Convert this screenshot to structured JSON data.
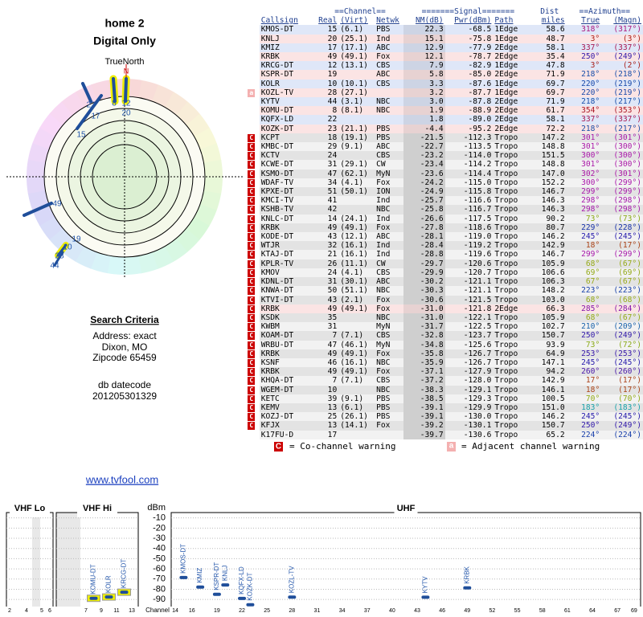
{
  "header": {
    "title": "home 2",
    "subtitle": "Digital Only"
  },
  "radar": {
    "true_north": "TrueNorth",
    "north": "N",
    "labels": [
      "8",
      "12",
      "22",
      "17",
      "20",
      "15",
      "49",
      "19",
      "10",
      "28",
      "44"
    ]
  },
  "search": {
    "title": "Search Criteria",
    "lines": [
      "Address: exact",
      "Dixon, MO",
      "Zipcode 65459"
    ],
    "datecode_label": "db datecode",
    "datecode": "201205301329"
  },
  "link": "www.tvfool.com",
  "table": {
    "group_headers": {
      "channel": "==Channel==",
      "signal": "=======Signal=======",
      "dist": "Dist",
      "azimuth": "==Azimuth=="
    },
    "columns": [
      "Callsign",
      "Real",
      "(Virt)",
      "Netwk",
      "NM(dB)",
      "Pwr(dBm)",
      "Path",
      "miles",
      "True",
      "(Magn)"
    ],
    "rows": [
      {
        "callsign": "KMOS-DT",
        "real": "15",
        "virt": "(6.1)",
        "network": "PBS",
        "nm": "22.3",
        "pwr": "-68.5",
        "path": "1Edge",
        "dist": "58.6",
        "true_az": "318°",
        "magn_az": "(317°)"
      },
      {
        "callsign": "KNLJ",
        "real": "20",
        "virt": "(25.1)",
        "network": "Ind",
        "nm": "15.1",
        "pwr": "-75.8",
        "path": "1Edge",
        "dist": "48.7",
        "true_az": "3°",
        "magn_az": "(3°)"
      },
      {
        "callsign": "KMIZ",
        "real": "17",
        "virt": "(17.1)",
        "network": "ABC",
        "nm": "12.9",
        "pwr": "-77.9",
        "path": "2Edge",
        "dist": "58.1",
        "true_az": "337°",
        "magn_az": "(337°)"
      },
      {
        "callsign": "KRBK",
        "real": "49",
        "virt": "(49.1)",
        "network": "Fox",
        "nm": "12.1",
        "pwr": "-78.7",
        "path": "2Edge",
        "dist": "35.4",
        "true_az": "250°",
        "magn_az": "(249°)"
      },
      {
        "callsign": "KRCG-DT",
        "real": "12",
        "virt": "(13.1)",
        "network": "CBS",
        "nm": "7.9",
        "pwr": "-82.9",
        "path": "1Edge",
        "dist": "47.8",
        "true_az": "3°",
        "magn_az": "(2°)"
      },
      {
        "callsign": "KSPR-DT",
        "real": "19",
        "network": "ABC",
        "nm": "5.8",
        "pwr": "-85.0",
        "path": "2Edge",
        "dist": "71.9",
        "true_az": "218°",
        "magn_az": "(218°)"
      },
      {
        "callsign": "KOLR",
        "real": "10",
        "virt": "(10.1)",
        "network": "CBS",
        "nm": "3.3",
        "pwr": "-87.6",
        "path": "1Edge",
        "dist": "69.7",
        "true_az": "220°",
        "magn_az": "(219°)"
      },
      {
        "warn": "a",
        "callsign": "KOZL-TV",
        "real": "28",
        "virt": "(27.1)",
        "nm": "3.2",
        "pwr": "-87.7",
        "path": "1Edge",
        "dist": "69.7",
        "true_az": "220°",
        "magn_az": "(219°)"
      },
      {
        "callsign": "KYTV",
        "real": "44",
        "virt": "(3.1)",
        "network": "NBC",
        "nm": "3.0",
        "pwr": "-87.8",
        "path": "2Edge",
        "dist": "71.9",
        "true_az": "218°",
        "magn_az": "(217°)"
      },
      {
        "callsign": "KOMU-DT",
        "real": "8",
        "virt": "(8.1)",
        "network": "NBC",
        "nm": "1.9",
        "pwr": "-88.9",
        "path": "2Edge",
        "dist": "61.7",
        "true_az": "354°",
        "magn_az": "(353°)"
      },
      {
        "callsign": "KQFX-LD",
        "real": "22",
        "nm": "1.8",
        "pwr": "-89.0",
        "path": "2Edge",
        "dist": "58.1",
        "true_az": "337°",
        "magn_az": "(337°)"
      },
      {
        "callsign": "KOZK-DT",
        "real": "23",
        "virt": "(21.1)",
        "network": "PBS",
        "nm": "-4.4",
        "pwr": "-95.2",
        "path": "2Edge",
        "dist": "72.2",
        "true_az": "218°",
        "magn_az": "(217°)"
      },
      {
        "warn": "C",
        "callsign": "KCPT",
        "real": "18",
        "virt": "(19.1)",
        "network": "PBS",
        "nm": "-21.5",
        "pwr": "-112.3",
        "path": "Tropo",
        "dist": "147.2",
        "true_az": "301°",
        "magn_az": "(301°)"
      },
      {
        "warn": "C",
        "callsign": "KMBC-DT",
        "real": "29",
        "virt": "(9.1)",
        "network": "ABC",
        "nm": "-22.7",
        "pwr": "-113.5",
        "path": "Tropo",
        "dist": "148.8",
        "true_az": "301°",
        "magn_az": "(300°)"
      },
      {
        "warn": "C",
        "callsign": "KCTV",
        "real": "24",
        "network": "CBS",
        "nm": "-23.2",
        "pwr": "-114.0",
        "path": "Tropo",
        "dist": "151.5",
        "true_az": "300°",
        "magn_az": "(300°)"
      },
      {
        "warn": "C",
        "callsign": "KCWE-DT",
        "real": "31",
        "virt": "(29.1)",
        "network": "CW",
        "nm": "-23.4",
        "pwr": "-114.2",
        "path": "Tropo",
        "dist": "148.8",
        "true_az": "301°",
        "magn_az": "(300°)"
      },
      {
        "warn": "C",
        "callsign": "KSMO-DT",
        "real": "47",
        "virt": "(62.1)",
        "network": "MyN",
        "nm": "-23.6",
        "pwr": "-114.4",
        "path": "Tropo",
        "dist": "147.0",
        "true_az": "302°",
        "magn_az": "(301°)"
      },
      {
        "warn": "C",
        "callsign": "WDAF-TV",
        "real": "34",
        "virt": "(4.1)",
        "network": "Fox",
        "nm": "-24.2",
        "pwr": "-115.0",
        "path": "Tropo",
        "dist": "152.2",
        "true_az": "300°",
        "magn_az": "(299°)"
      },
      {
        "warn": "C",
        "callsign": "KPXE-DT",
        "real": "51",
        "virt": "(50.1)",
        "network": "ION",
        "nm": "-24.9",
        "pwr": "-115.8",
        "path": "Tropo",
        "dist": "146.7",
        "true_az": "299°",
        "magn_az": "(299°)"
      },
      {
        "warn": "C",
        "callsign": "KMCI-TV",
        "real": "41",
        "network": "Ind",
        "nm": "-25.7",
        "pwr": "-116.6",
        "path": "Tropo",
        "dist": "146.3",
        "true_az": "298°",
        "magn_az": "(298°)"
      },
      {
        "warn": "C",
        "callsign": "KSHB-TV",
        "real": "42",
        "network": "NBC",
        "nm": "-25.8",
        "pwr": "-116.7",
        "path": "Tropo",
        "dist": "146.3",
        "true_az": "298°",
        "magn_az": "(298°)"
      },
      {
        "warn": "C",
        "callsign": "KNLC-DT",
        "real": "14",
        "virt": "(24.1)",
        "network": "Ind",
        "nm": "-26.6",
        "pwr": "-117.5",
        "path": "Tropo",
        "dist": "90.2",
        "true_az": "73°",
        "magn_az": "(73°)"
      },
      {
        "warn": "C",
        "callsign": "KRBK",
        "real": "49",
        "virt": "(49.1)",
        "network": "Fox",
        "nm": "-27.8",
        "pwr": "-118.6",
        "path": "Tropo",
        "dist": "80.7",
        "true_az": "229°",
        "magn_az": "(228°)"
      },
      {
        "warn": "C",
        "callsign": "KODE-DT",
        "real": "43",
        "virt": "(12.1)",
        "network": "ABC",
        "nm": "-28.1",
        "pwr": "-119.0",
        "path": "Tropo",
        "dist": "146.2",
        "true_az": "245°",
        "magn_az": "(245°)"
      },
      {
        "warn": "C",
        "callsign": "WTJR",
        "real": "32",
        "virt": "(16.1)",
        "network": "Ind",
        "nm": "-28.4",
        "pwr": "-119.2",
        "path": "Tropo",
        "dist": "142.9",
        "true_az": "18°",
        "magn_az": "(17°)"
      },
      {
        "warn": "C",
        "callsign": "KTAJ-DT",
        "real": "21",
        "virt": "(16.1)",
        "network": "Ind",
        "nm": "-28.8",
        "pwr": "-119.6",
        "path": "Tropo",
        "dist": "146.7",
        "true_az": "299°",
        "magn_az": "(299°)"
      },
      {
        "warn": "C",
        "callsign": "KPLR-TV",
        "real": "26",
        "virt": "(11.1)",
        "network": "CW",
        "nm": "-29.7",
        "pwr": "-120.6",
        "path": "Tropo",
        "dist": "105.9",
        "true_az": "68°",
        "magn_az": "(67°)"
      },
      {
        "warn": "C",
        "callsign": "KMOV",
        "real": "24",
        "virt": "(4.1)",
        "network": "CBS",
        "nm": "-29.9",
        "pwr": "-120.7",
        "path": "Tropo",
        "dist": "106.6",
        "true_az": "69°",
        "magn_az": "(69°)"
      },
      {
        "warn": "C",
        "callsign": "KDNL-DT",
        "real": "31",
        "virt": "(30.1)",
        "network": "ABC",
        "nm": "-30.2",
        "pwr": "-121.1",
        "path": "Tropo",
        "dist": "106.3",
        "true_az": "67°",
        "magn_az": "(67°)"
      },
      {
        "warn": "C",
        "callsign": "KNWA-DT",
        "real": "50",
        "virt": "(51.1)",
        "network": "NBC",
        "nm": "-30.3",
        "pwr": "-121.1",
        "path": "Tropo",
        "dist": "148.2",
        "true_az": "223°",
        "magn_az": "(223°)"
      },
      {
        "warn": "C",
        "callsign": "KTVI-DT",
        "real": "43",
        "virt": "(2.1)",
        "network": "Fox",
        "nm": "-30.6",
        "pwr": "-121.5",
        "path": "Tropo",
        "dist": "103.0",
        "true_az": "68°",
        "magn_az": "(68°)"
      },
      {
        "warn": "C",
        "callsign": "KRBK",
        "real": "49",
        "virt": "(49.1)",
        "network": "Fox",
        "nm": "-31.0",
        "pwr": "-121.8",
        "path": "2Edge",
        "dist": "66.3",
        "true_az": "285°",
        "magn_az": "(284°)"
      },
      {
        "warn": "C",
        "callsign": "KSDK",
        "real": "35",
        "network": "NBC",
        "nm": "-31.0",
        "pwr": "-122.1",
        "path": "Tropo",
        "dist": "105.9",
        "true_az": "68°",
        "magn_az": "(67°)"
      },
      {
        "warn": "C",
        "callsign": "KWBM",
        "real": "31",
        "network": "MyN",
        "nm": "-31.7",
        "pwr": "-122.5",
        "path": "Tropo",
        "dist": "102.7",
        "true_az": "210°",
        "magn_az": "(209°)"
      },
      {
        "warn": "C",
        "callsign": "KOAM-DT",
        "real": "7",
        "virt": "(7.1)",
        "network": "CBS",
        "nm": "-32.8",
        "pwr": "-123.7",
        "path": "Tropo",
        "dist": "150.7",
        "true_az": "250°",
        "magn_az": "(249°)"
      },
      {
        "warn": "C",
        "callsign": "WRBU-DT",
        "real": "47",
        "virt": "(46.1)",
        "network": "MyN",
        "nm": "-34.8",
        "pwr": "-125.6",
        "path": "Tropo",
        "dist": "93.9",
        "true_az": "73°",
        "magn_az": "(72°)"
      },
      {
        "warn": "C",
        "callsign": "KRBK",
        "real": "49",
        "virt": "(49.1)",
        "network": "Fox",
        "nm": "-35.8",
        "pwr": "-126.7",
        "path": "Tropo",
        "dist": "64.9",
        "true_az": "253°",
        "magn_az": "(253°)"
      },
      {
        "warn": "C",
        "callsign": "KSNF",
        "real": "46",
        "virt": "(16.1)",
        "network": "NBC",
        "nm": "-35.9",
        "pwr": "-126.7",
        "path": "Tropo",
        "dist": "147.1",
        "true_az": "245°",
        "magn_az": "(245°)"
      },
      {
        "warn": "C",
        "callsign": "KRBK",
        "real": "49",
        "virt": "(49.1)",
        "network": "Fox",
        "nm": "-37.1",
        "pwr": "-127.9",
        "path": "Tropo",
        "dist": "94.2",
        "true_az": "260°",
        "magn_az": "(260°)"
      },
      {
        "warn": "C",
        "callsign": "KHQA-DT",
        "real": "7",
        "virt": "(7.1)",
        "network": "CBS",
        "nm": "-37.2",
        "pwr": "-128.0",
        "path": "Tropo",
        "dist": "142.9",
        "true_az": "17°",
        "magn_az": "(17°)"
      },
      {
        "warn": "C",
        "callsign": "WGEM-DT",
        "real": "10",
        "network": "NBC",
        "nm": "-38.3",
        "pwr": "-129.1",
        "path": "Tropo",
        "dist": "146.1",
        "true_az": "18°",
        "magn_az": "(17°)"
      },
      {
        "warn": "C",
        "callsign": "KETC",
        "real": "39",
        "virt": "(9.1)",
        "network": "PBS",
        "nm": "-38.5",
        "pwr": "-129.3",
        "path": "Tropo",
        "dist": "100.5",
        "true_az": "70°",
        "magn_az": "(70°)"
      },
      {
        "warn": "C",
        "callsign": "KEMV",
        "real": "13",
        "virt": "(6.1)",
        "network": "PBS",
        "nm": "-39.1",
        "pwr": "-129.9",
        "path": "Tropo",
        "dist": "151.0",
        "true_az": "183°",
        "magn_az": "(183°)"
      },
      {
        "warn": "C",
        "callsign": "KOZJ-DT",
        "real": "25",
        "virt": "(26.1)",
        "network": "PBS",
        "nm": "-39.1",
        "pwr": "-130.0",
        "path": "Tropo",
        "dist": "146.2",
        "true_az": "245°",
        "magn_az": "(245°)"
      },
      {
        "warn": "C",
        "callsign": "KFJX",
        "real": "13",
        "virt": "(14.1)",
        "network": "Fox",
        "nm": "-39.2",
        "pwr": "-130.1",
        "path": "Tropo",
        "dist": "150.7",
        "true_az": "250°",
        "magn_az": "(249°)"
      },
      {
        "callsign": "K17FU-D",
        "real": "17",
        "nm": "-39.7",
        "pwr": "-130.6",
        "path": "Tropo",
        "dist": "65.2",
        "true_az": "224°",
        "magn_az": "(224°)"
      }
    ]
  },
  "legend": {
    "co_icon": "C",
    "co_text": "= Co-channel warning",
    "adj_icon": "a",
    "adj_text": "= Adjacent channel warning"
  },
  "chart_data": {
    "type": "bar",
    "y_label": "dBm",
    "x_label": "Channel",
    "panels": [
      "VHF Lo",
      "VHF Hi",
      "UHF"
    ],
    "xticks": [
      2,
      4,
      5,
      6,
      7,
      9,
      11,
      13,
      14,
      16,
      19,
      22,
      25,
      28,
      31,
      34,
      37,
      40,
      43,
      46,
      49,
      52,
      55,
      58,
      61,
      64,
      67,
      69
    ],
    "ylim": [
      -97,
      0
    ],
    "yticks": [
      -10,
      -20,
      -30,
      -40,
      -50,
      -60,
      -70,
      -80,
      -90
    ],
    "categories": [
      "KOMU-DT",
      "KOLR",
      "KRCG-DT",
      "KMOS-DT",
      "KMIZ",
      "KSPR-DT",
      "KNLJ",
      "KQFX-LD",
      "KOZK-DT",
      "KOZL-TV",
      "KYTV",
      "KRBK"
    ],
    "x": [
      8,
      10,
      12,
      15,
      17,
      19,
      20,
      22,
      23,
      28,
      44,
      49
    ],
    "values": [
      -88.9,
      -87.6,
      -82.9,
      -68.5,
      -77.9,
      -85.0,
      -75.8,
      -89.0,
      -95.2,
      -87.7,
      -87.8,
      -78.7
    ],
    "color": "#1f4e9a"
  }
}
